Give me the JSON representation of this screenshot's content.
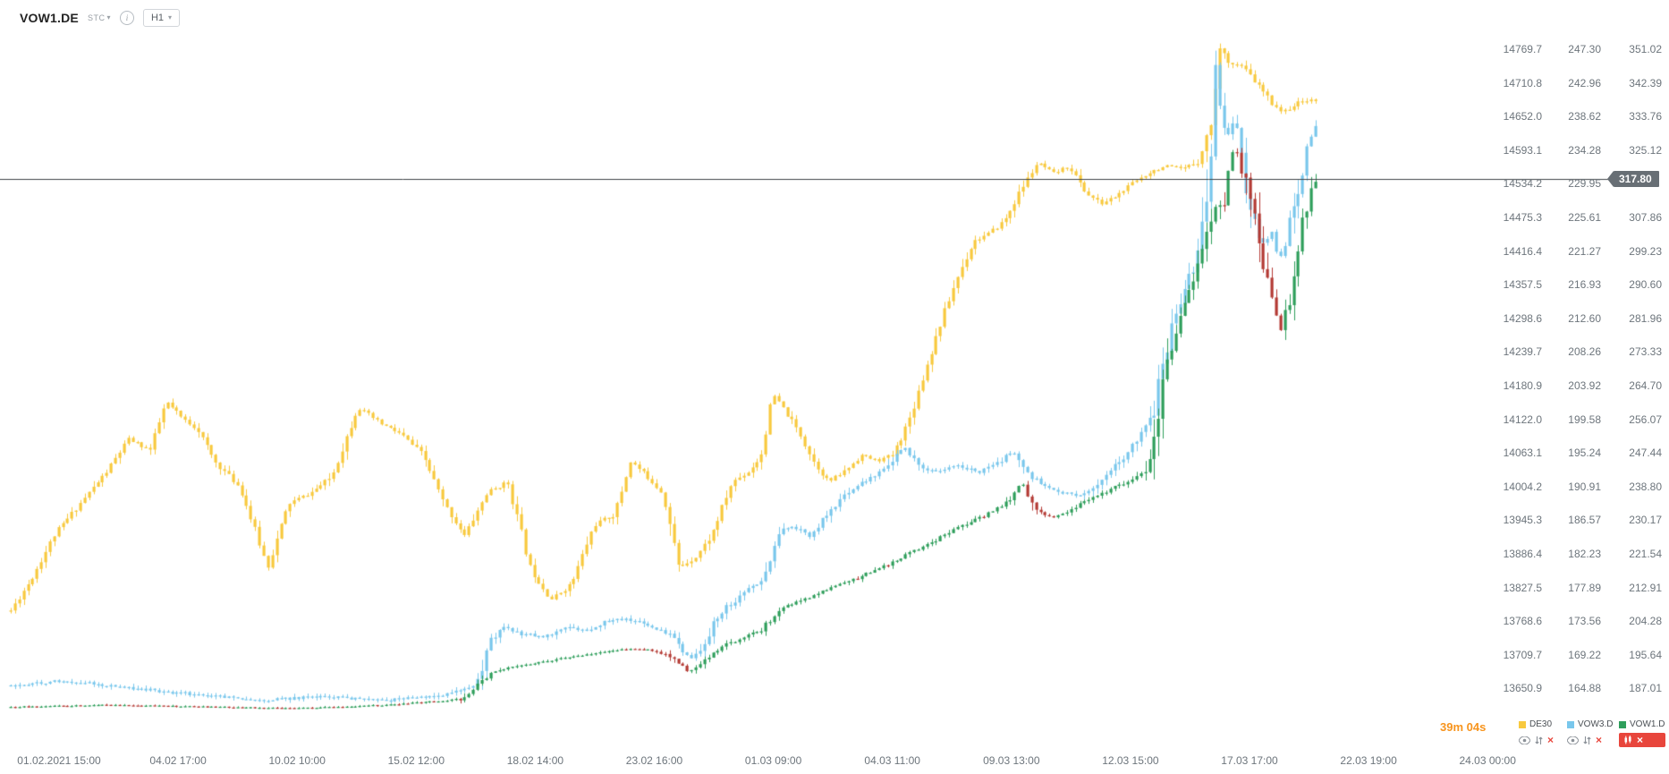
{
  "header": {
    "symbol": "VOW1.DE",
    "feed": "STC",
    "timeframe": "H1"
  },
  "price_line": {
    "value": "317.80",
    "color": "#686f75"
  },
  "price_axes": {
    "columns": [
      {
        "id": "de30",
        "labels": [
          "14769.7",
          "14710.8",
          "14652.0",
          "14593.1",
          "14534.2",
          "14475.3",
          "14416.4",
          "14357.5",
          "14298.6",
          "14239.7",
          "14180.9",
          "14122.0",
          "14063.1",
          "14004.2",
          "13945.3",
          "13886.4",
          "13827.5",
          "13768.6",
          "13709.7",
          "13650.9"
        ]
      },
      {
        "id": "vow3",
        "labels": [
          "247.30",
          "242.96",
          "238.62",
          "234.28",
          "229.95",
          "225.61",
          "221.27",
          "216.93",
          "212.60",
          "208.26",
          "203.92",
          "199.58",
          "195.24",
          "190.91",
          "186.57",
          "182.23",
          "177.89",
          "173.56",
          "169.22",
          "164.88"
        ]
      },
      {
        "id": "vow1",
        "labels": [
          "351.02",
          "342.39",
          "333.76",
          "325.12",
          "",
          "307.86",
          "299.23",
          "290.60",
          "281.96",
          "273.33",
          "264.70",
          "256.07",
          "247.44",
          "238.80",
          "230.17",
          "221.54",
          "212.91",
          "204.28",
          "195.64",
          "187.01"
        ]
      }
    ]
  },
  "time_axis": [
    "01.02.2021 15:00",
    "04.02 17:00",
    "10.02 10:00",
    "15.02 12:00",
    "18.02 14:00",
    "23.02 16:00",
    "01.03 09:00",
    "04.03 11:00",
    "09.03 13:00",
    "12.03 15:00",
    "17.03 17:00",
    "22.03 19:00",
    "24.03 00:00"
  ],
  "footer": {
    "timer": "39m 04s",
    "legend": [
      {
        "label": "DE30",
        "color": "#f8c93e",
        "active": false
      },
      {
        "label": "VOW3.D...",
        "color": "#79c7ec",
        "active": false
      },
      {
        "label": "VOW1.D...",
        "color": "#2e9e5b",
        "active": true
      }
    ]
  },
  "chart_data": {
    "type": "candlestick",
    "timeframe": "H1",
    "x_range": [
      "01.02.2021 15:00",
      "24.03 00:00"
    ],
    "last_price": 317.8,
    "last_price_instrument": "VOW1.DE",
    "series": [
      {
        "name": "DE30",
        "axis": "de30",
        "color": "#f8c93e",
        "seed": 11,
        "base_vol": 7,
        "slope_k": 0.15,
        "max_vol": 42,
        "anchors": [
          [
            0,
            13787
          ],
          [
            0.016,
            13843
          ],
          [
            0.033,
            13918
          ],
          [
            0.053,
            13974
          ],
          [
            0.074,
            14031
          ],
          [
            0.09,
            14087
          ],
          [
            0.107,
            14068
          ],
          [
            0.119,
            14153
          ],
          [
            0.131,
            14124
          ],
          [
            0.143,
            14106
          ],
          [
            0.156,
            14049
          ],
          [
            0.176,
            14002
          ],
          [
            0.197,
            13862
          ],
          [
            0.213,
            13974
          ],
          [
            0.23,
            13993
          ],
          [
            0.246,
            14021
          ],
          [
            0.266,
            14143
          ],
          [
            0.283,
            14115
          ],
          [
            0.299,
            14096
          ],
          [
            0.316,
            14059
          ],
          [
            0.332,
            13974
          ],
          [
            0.348,
            13918
          ],
          [
            0.365,
            13993
          ],
          [
            0.381,
            14012
          ],
          [
            0.398,
            13862
          ],
          [
            0.414,
            13806
          ],
          [
            0.43,
            13834
          ],
          [
            0.447,
            13937
          ],
          [
            0.463,
            13956
          ],
          [
            0.475,
            14049
          ],
          [
            0.488,
            14021
          ],
          [
            0.5,
            13993
          ],
          [
            0.512,
            13862
          ],
          [
            0.525,
            13881
          ],
          [
            0.537,
            13918
          ],
          [
            0.553,
            14012
          ],
          [
            0.566,
            14031
          ],
          [
            0.575,
            14059
          ],
          [
            0.584,
            14166
          ],
          [
            0.594,
            14134
          ],
          [
            0.605,
            14096
          ],
          [
            0.615,
            14049
          ],
          [
            0.627,
            14012
          ],
          [
            0.639,
            14031
          ],
          [
            0.652,
            14059
          ],
          [
            0.664,
            14049
          ],
          [
            0.676,
            14059
          ],
          [
            0.689,
            14124
          ],
          [
            0.701,
            14209
          ],
          [
            0.713,
            14293
          ],
          [
            0.725,
            14368
          ],
          [
            0.738,
            14434
          ],
          [
            0.75,
            14447
          ],
          [
            0.762,
            14471
          ],
          [
            0.775,
            14527
          ],
          [
            0.787,
            14571
          ],
          [
            0.799,
            14552
          ],
          [
            0.811,
            14565
          ],
          [
            0.824,
            14518
          ],
          [
            0.836,
            14499
          ],
          [
            0.848,
            14514
          ],
          [
            0.861,
            14537
          ],
          [
            0.873,
            14555
          ],
          [
            0.885,
            14565
          ],
          [
            0.898,
            14559
          ],
          [
            0.91,
            14574
          ],
          [
            0.92,
            14640
          ],
          [
            0.926,
            14771
          ],
          [
            0.934,
            14747
          ],
          [
            0.944,
            14739
          ],
          [
            0.955,
            14709
          ],
          [
            0.966,
            14677
          ],
          [
            0.975,
            14659
          ],
          [
            0.985,
            14674
          ],
          [
            0.996,
            14683
          ],
          [
            1,
            14677
          ]
        ]
      },
      {
        "name": "VOW3.DE",
        "axis": "vow3",
        "color": "#79c7ec",
        "seed": 22,
        "base_vol": 0.5,
        "slope_k": 0.25,
        "max_vol": 8,
        "anchors": [
          [
            0,
            165.2
          ],
          [
            0.041,
            165.9
          ],
          [
            0.09,
            164.9
          ],
          [
            0.139,
            164.1
          ],
          [
            0.189,
            163.3
          ],
          [
            0.238,
            163.8
          ],
          [
            0.287,
            163.3
          ],
          [
            0.336,
            164.1
          ],
          [
            0.357,
            165.2
          ],
          [
            0.367,
            170.7
          ],
          [
            0.377,
            172.8
          ],
          [
            0.393,
            171.8
          ],
          [
            0.41,
            171.5
          ],
          [
            0.426,
            172.6
          ],
          [
            0.443,
            172.4
          ],
          [
            0.459,
            173.7
          ],
          [
            0.475,
            173.7
          ],
          [
            0.492,
            172.9
          ],
          [
            0.508,
            171.4
          ],
          [
            0.52,
            168.6
          ],
          [
            0.531,
            170
          ],
          [
            0.541,
            174.2
          ],
          [
            0.553,
            175.9
          ],
          [
            0.566,
            177.6
          ],
          [
            0.578,
            179
          ],
          [
            0.589,
            185.2
          ],
          [
            0.6,
            185.6
          ],
          [
            0.613,
            184.5
          ],
          [
            0.627,
            187.5
          ],
          [
            0.643,
            190.3
          ],
          [
            0.66,
            192.1
          ],
          [
            0.676,
            193.9
          ],
          [
            0.684,
            196.2
          ],
          [
            0.695,
            193.5
          ],
          [
            0.709,
            192.8
          ],
          [
            0.725,
            193.5
          ],
          [
            0.742,
            192.8
          ],
          [
            0.758,
            194.2
          ],
          [
            0.77,
            195.5
          ],
          [
            0.78,
            192.1
          ],
          [
            0.793,
            191.1
          ],
          [
            0.807,
            190
          ],
          [
            0.82,
            189.6
          ],
          [
            0.832,
            191.1
          ],
          [
            0.844,
            193.1
          ],
          [
            0.854,
            194.8
          ],
          [
            0.865,
            197.2
          ],
          [
            0.875,
            199.7
          ],
          [
            0.881,
            205.2
          ],
          [
            0.887,
            209.6
          ],
          [
            0.893,
            213.2
          ],
          [
            0.9,
            216
          ],
          [
            0.907,
            219.7
          ],
          [
            0.913,
            223.9
          ],
          [
            0.919,
            232.2
          ],
          [
            0.923,
            244.6
          ],
          [
            0.927,
            239.1
          ],
          [
            0.932,
            235.9
          ],
          [
            0.937,
            237.7
          ],
          [
            0.942,
            235.9
          ],
          [
            0.947,
            229.1
          ],
          [
            0.952,
            225.7
          ],
          [
            0.957,
            223
          ],
          [
            0.961,
            221.9
          ],
          [
            0.966,
            223.9
          ],
          [
            0.971,
            220.2
          ],
          [
            0.976,
            221.6
          ],
          [
            0.981,
            225.7
          ],
          [
            0.986,
            229.1
          ],
          [
            0.991,
            232.7
          ],
          [
            0.996,
            236.4
          ],
          [
            1,
            237.4
          ]
        ]
      },
      {
        "name": "VOW1.DE",
        "axis": "vow1",
        "up_color": "#2e9e5b",
        "down_color": "#b43a34",
        "seed": 33,
        "base_vol": 0.3,
        "slope_k": 0.35,
        "max_vol": 7,
        "anchors": [
          [
            0,
            182.3
          ],
          [
            0.074,
            182.8
          ],
          [
            0.156,
            182.3
          ],
          [
            0.221,
            182
          ],
          [
            0.287,
            182.8
          ],
          [
            0.344,
            184.2
          ],
          [
            0.359,
            188.3
          ],
          [
            0.369,
            191.1
          ],
          [
            0.385,
            192.7
          ],
          [
            0.406,
            193.8
          ],
          [
            0.426,
            194.9
          ],
          [
            0.447,
            196
          ],
          [
            0.467,
            197.1
          ],
          [
            0.488,
            197.1
          ],
          [
            0.504,
            195.5
          ],
          [
            0.52,
            191.1
          ],
          [
            0.533,
            194.9
          ],
          [
            0.548,
            198.2
          ],
          [
            0.561,
            200.1
          ],
          [
            0.575,
            202
          ],
          [
            0.586,
            206.4
          ],
          [
            0.598,
            208.6
          ],
          [
            0.611,
            210.3
          ],
          [
            0.623,
            212.2
          ],
          [
            0.635,
            213.6
          ],
          [
            0.648,
            215.2
          ],
          [
            0.66,
            217.2
          ],
          [
            0.672,
            218.8
          ],
          [
            0.684,
            221
          ],
          [
            0.697,
            223.2
          ],
          [
            0.709,
            225.1
          ],
          [
            0.721,
            227.3
          ],
          [
            0.734,
            229.5
          ],
          [
            0.746,
            231.4
          ],
          [
            0.758,
            233.6
          ],
          [
            0.769,
            236.7
          ],
          [
            0.775,
            240.5
          ],
          [
            0.78,
            235
          ],
          [
            0.789,
            232.2
          ],
          [
            0.799,
            230.9
          ],
          [
            0.81,
            232.5
          ],
          [
            0.82,
            234.4
          ],
          [
            0.83,
            236.1
          ],
          [
            0.84,
            237.7
          ],
          [
            0.851,
            239.4
          ],
          [
            0.861,
            241.3
          ],
          [
            0.869,
            243.2
          ],
          [
            0.875,
            249.5
          ],
          [
            0.88,
            258.6
          ],
          [
            0.884,
            268.8
          ],
          [
            0.889,
            275.1
          ],
          [
            0.894,
            278.9
          ],
          [
            0.899,
            284.4
          ],
          [
            0.904,
            290.8
          ],
          [
            0.909,
            295.4
          ],
          [
            0.914,
            299.8
          ],
          [
            0.919,
            307.2
          ],
          [
            0.924,
            311.9
          ],
          [
            0.929,
            309.2
          ],
          [
            0.934,
            321.8
          ],
          [
            0.939,
            325.7
          ],
          [
            0.943,
            320.2
          ],
          [
            0.948,
            314.7
          ],
          [
            0.953,
            309.2
          ],
          [
            0.958,
            297.1
          ],
          [
            0.963,
            290.8
          ],
          [
            0.968,
            284.4
          ],
          [
            0.973,
            278.9
          ],
          [
            0.978,
            284.4
          ],
          [
            0.983,
            292.6
          ],
          [
            0.987,
            300.9
          ],
          [
            0.992,
            309.2
          ],
          [
            0.997,
            315.5
          ],
          [
            1,
            317.8
          ]
        ]
      }
    ]
  }
}
